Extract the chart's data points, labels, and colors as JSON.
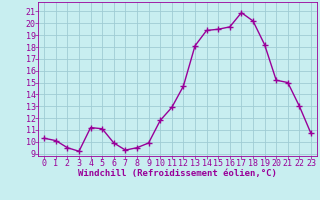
{
  "x": [
    0,
    1,
    2,
    3,
    4,
    5,
    6,
    7,
    8,
    9,
    10,
    11,
    12,
    13,
    14,
    15,
    16,
    17,
    18,
    19,
    20,
    21,
    22,
    23
  ],
  "y": [
    10.3,
    10.1,
    9.5,
    9.2,
    11.2,
    11.1,
    9.9,
    9.3,
    9.5,
    9.9,
    11.8,
    12.9,
    14.7,
    18.1,
    19.4,
    19.5,
    19.7,
    20.9,
    20.2,
    18.2,
    15.2,
    15.0,
    13.0,
    10.7
  ],
  "line_color": "#990099",
  "marker": "+",
  "marker_size": 4,
  "bg_color": "#c8eef0",
  "grid_color": "#a0ccd4",
  "xlabel": "Windchill (Refroidissement éolien,°C)",
  "ylabel_ticks": [
    9,
    10,
    11,
    12,
    13,
    14,
    15,
    16,
    17,
    18,
    19,
    20,
    21
  ],
  "xlim": [
    -0.5,
    23.5
  ],
  "ylim": [
    8.8,
    21.8
  ],
  "xtick_labels": [
    "0",
    "1",
    "2",
    "3",
    "4",
    "5",
    "6",
    "7",
    "8",
    "9",
    "10",
    "11",
    "12",
    "13",
    "14",
    "15",
    "16",
    "17",
    "18",
    "19",
    "20",
    "21",
    "22",
    "23"
  ],
  "xlabel_fontsize": 6.5,
  "tick_fontsize": 6,
  "line_width": 1.0
}
